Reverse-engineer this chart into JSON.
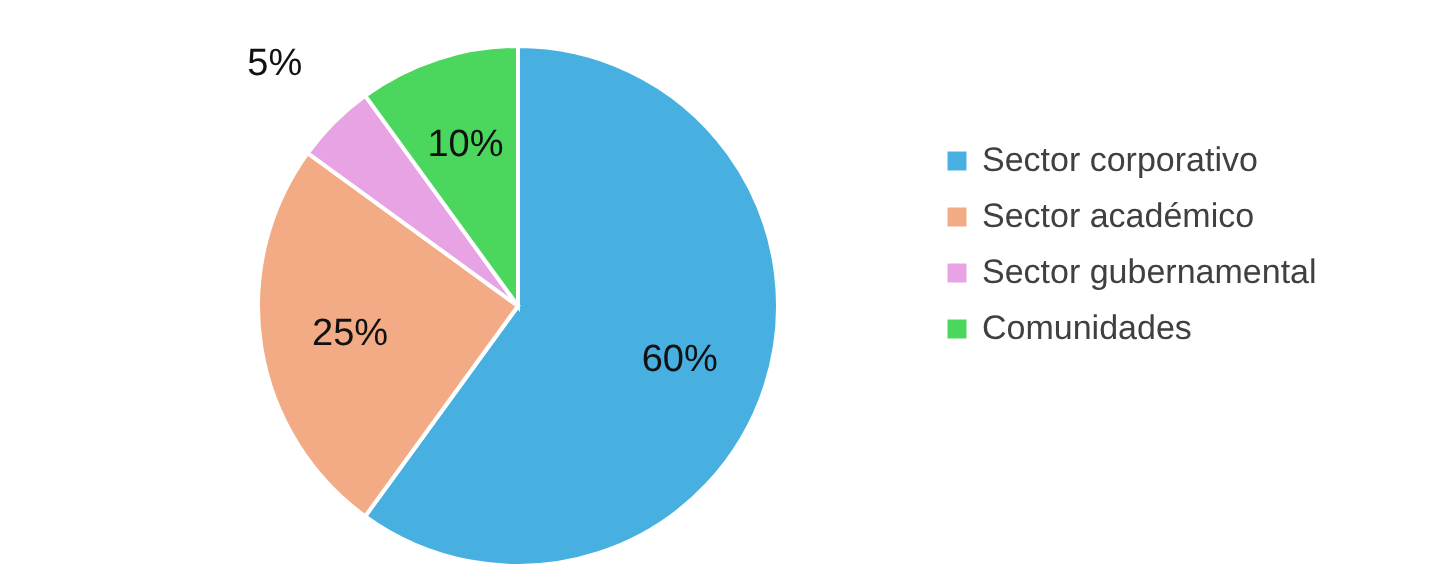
{
  "chart_data": {
    "type": "pie",
    "categories": [
      "Sector corporativo",
      "Sector académico",
      "Sector gubernamental",
      "Comunidades"
    ],
    "values": [
      60,
      25,
      5,
      10
    ],
    "value_labels": [
      "60%",
      "25%",
      "5%",
      "10%"
    ],
    "colors": [
      "#48b0e0",
      "#f2ab85",
      "#e7a3e3",
      "#4bd65e"
    ],
    "legend": "right"
  }
}
